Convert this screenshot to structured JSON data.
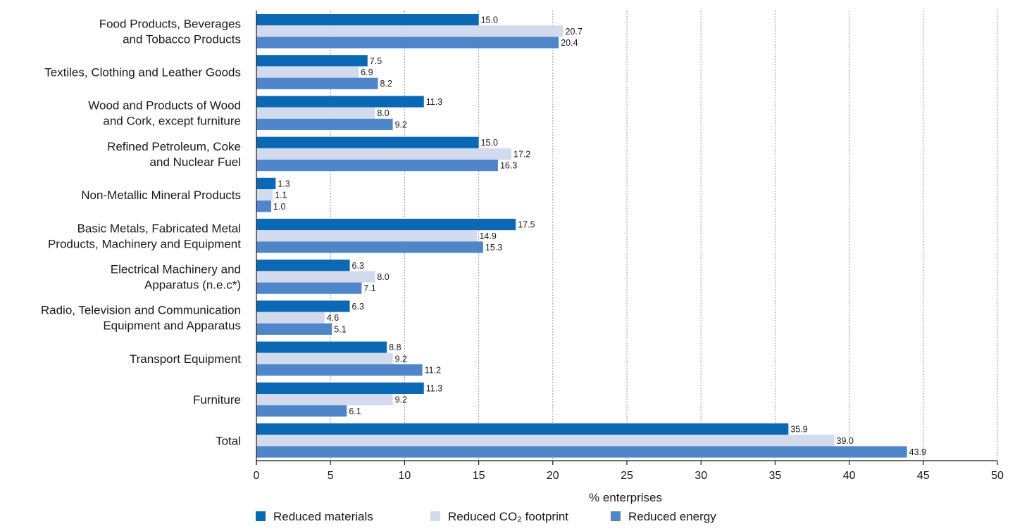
{
  "chart_data": {
    "type": "bar",
    "orientation": "horizontal",
    "categories": [
      "Food Products, Beverages\nand Tobacco Products",
      "Textiles, Clothing and Leather Goods",
      "Wood and Products of Wood\nand Cork, except furniture",
      "Refined Petroleum, Coke\nand Nuclear Fuel",
      "Non-Metallic Mineral Products",
      "Basic Metals, Fabricated Metal\nProducts, Machinery and Equipment",
      "Electrical Machinery and\nApparatus (n.e.c*)",
      "Radio, Television and Communication\nEquipment and Apparatus",
      "Transport Equipment",
      "Furniture",
      "Total"
    ],
    "series": [
      {
        "name": "Reduced materials",
        "color": "#0b68b5",
        "values": [
          15.0,
          7.5,
          11.3,
          15.0,
          1.3,
          17.5,
          6.3,
          6.3,
          8.8,
          11.3,
          35.9
        ],
        "labels": [
          "15.0",
          "7.5",
          "11.3",
          "15.0",
          "1.3",
          "17.5",
          "6.3",
          "6.3",
          "8.8",
          "11.3",
          "35.9"
        ]
      },
      {
        "name": "Reduced CO₂ footprint",
        "color": "#d2daee",
        "values": [
          20.7,
          6.9,
          8.0,
          17.2,
          1.1,
          14.9,
          8.0,
          4.6,
          9.2,
          9.2,
          39.0
        ],
        "labels": [
          "20.7",
          "6.9",
          "8.0",
          "17.2",
          "1.1",
          "14.9",
          "8.0",
          "4.6",
          "9.2",
          "9.2",
          "39.0"
        ]
      },
      {
        "name": "Reduced energy",
        "color": "#4f86c9",
        "values": [
          20.4,
          8.2,
          9.2,
          16.3,
          1.0,
          15.3,
          7.1,
          5.1,
          11.2,
          6.1,
          43.9
        ],
        "labels": [
          "20.4",
          "8.2",
          "9.2",
          "16.3",
          "1.0",
          "15.3",
          "7.1",
          "5.1",
          "11.2",
          "6.1",
          "43.9"
        ]
      }
    ],
    "xlabel": "% enterprises",
    "xlim": [
      0,
      50
    ],
    "xticks": [
      0,
      5,
      10,
      15,
      20,
      25,
      30,
      35,
      40,
      45,
      50
    ],
    "grid": "vertical dotted",
    "legend_position": "bottom"
  }
}
